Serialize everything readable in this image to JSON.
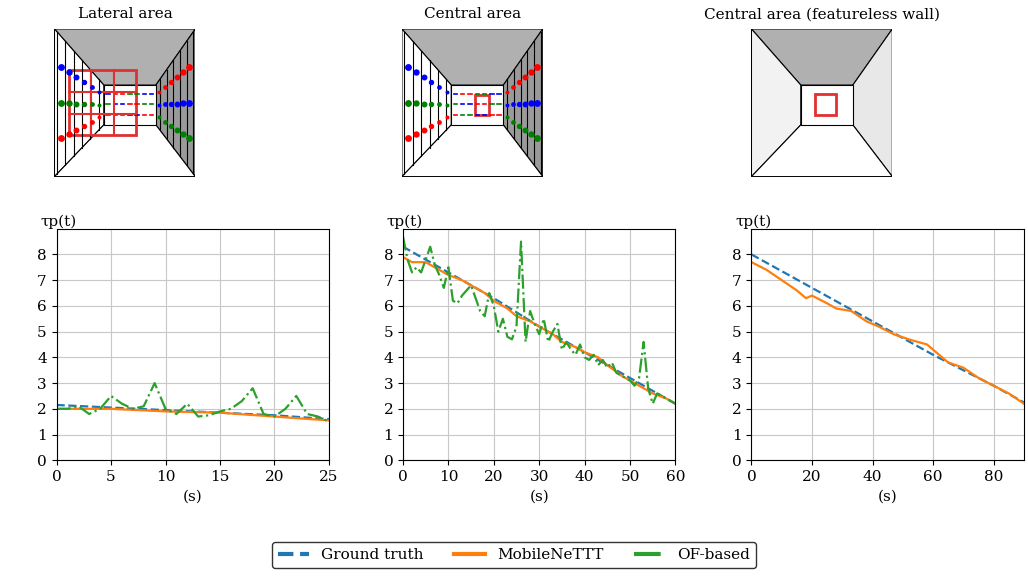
{
  "legend": "lower center",
  "chart_data": [
    {
      "type": "line",
      "title": "Lateral area",
      "x_label": "(s)",
      "y_label": "τp(t)",
      "xlim": [
        0,
        25
      ],
      "xticks": [
        0,
        5,
        10,
        15,
        20,
        25
      ],
      "ylim": [
        0,
        9
      ],
      "yticks": [
        0,
        1,
        2,
        3,
        4,
        5,
        6,
        7,
        8
      ],
      "grid": true,
      "series": [
        {
          "name": "Ground truth",
          "color": "#1f77b4",
          "line_style": "dashed",
          "x": [
            0,
            5,
            10,
            15,
            20,
            25
          ],
          "values": [
            2.15,
            2.05,
            1.95,
            1.85,
            1.75,
            1.6
          ]
        },
        {
          "name": "MobileNeTTT",
          "color": "#ff7f0e",
          "line_style": "solid",
          "x": [
            0,
            5,
            10,
            15,
            20,
            25
          ],
          "values": [
            2.0,
            2.0,
            1.9,
            1.85,
            1.7,
            1.55
          ]
        },
        {
          "name": "OF-based",
          "color": "#2ca02c",
          "line_style": "dashdot",
          "x": [
            0,
            1,
            2,
            3,
            4,
            5,
            6,
            7,
            8,
            9,
            10,
            11,
            12,
            13,
            14,
            15,
            16,
            17,
            18,
            19,
            20,
            21,
            22,
            23,
            24,
            25
          ],
          "values": [
            2.0,
            2.0,
            2.1,
            1.8,
            2.0,
            2.5,
            2.2,
            2.0,
            2.1,
            3.0,
            2.0,
            1.8,
            2.2,
            1.7,
            1.75,
            1.9,
            2.0,
            2.3,
            2.8,
            1.8,
            1.7,
            2.0,
            2.5,
            1.8,
            1.7,
            1.5
          ]
        }
      ]
    },
    {
      "type": "line",
      "title": "Central area",
      "x_label": "(s)",
      "y_label": "τp(t)",
      "xlim": [
        0,
        60
      ],
      "xticks": [
        0,
        10,
        20,
        30,
        40,
        50,
        60
      ],
      "ylim": [
        0,
        9
      ],
      "yticks": [
        0,
        1,
        2,
        3,
        4,
        5,
        6,
        7,
        8
      ],
      "grid": true,
      "series": [
        {
          "name": "Ground truth",
          "color": "#1f77b4",
          "line_style": "dashed",
          "x": [
            0,
            10,
            20,
            30,
            40,
            50,
            60
          ],
          "values": [
            8.3,
            7.3,
            6.3,
            5.2,
            4.2,
            3.2,
            2.2
          ]
        },
        {
          "name": "MobileNeTTT",
          "color": "#ff7f0e",
          "line_style": "solid",
          "x": [
            0,
            2,
            5,
            8,
            10,
            13,
            15,
            18,
            20,
            23,
            25,
            28,
            30,
            33,
            35,
            38,
            40,
            43,
            45,
            48,
            50,
            53,
            55,
            58,
            60
          ],
          "values": [
            7.9,
            7.7,
            7.7,
            7.4,
            7.2,
            7.0,
            6.8,
            6.5,
            6.2,
            5.9,
            5.6,
            5.4,
            5.2,
            4.9,
            4.6,
            4.4,
            4.2,
            4.0,
            3.7,
            3.3,
            3.1,
            2.8,
            2.6,
            2.4,
            2.2
          ]
        },
        {
          "name": "OF-based",
          "color": "#2ca02c",
          "line_style": "dashdot",
          "x": [
            0,
            1,
            2,
            3,
            4,
            5,
            6,
            7,
            8,
            9,
            10,
            11,
            12,
            13,
            14,
            15,
            16,
            17,
            18,
            19,
            20,
            21,
            22,
            23,
            24,
            25,
            26,
            27,
            28,
            29,
            30,
            31,
            32,
            33,
            34,
            35,
            36,
            37,
            38,
            39,
            40,
            41,
            42,
            43,
            44,
            45,
            46,
            47,
            48,
            49,
            50,
            51,
            52,
            53,
            54,
            55,
            56,
            57,
            58,
            59,
            60
          ],
          "values": [
            8.7,
            7.8,
            7.3,
            7.5,
            7.3,
            7.8,
            8.3,
            7.6,
            7.2,
            6.7,
            7.5,
            6.2,
            6.1,
            6.4,
            6.6,
            6.8,
            6.3,
            5.8,
            5.6,
            6.5,
            6.0,
            5.0,
            5.5,
            4.8,
            4.7,
            5.2,
            8.5,
            4.6,
            5.8,
            5.3,
            4.9,
            5.5,
            4.6,
            5.0,
            5.3,
            4.3,
            4.6,
            4.3,
            4.1,
            4.5,
            4.0,
            3.9,
            4.1,
            3.7,
            3.9,
            3.6,
            3.8,
            3.4,
            3.3,
            3.2,
            3.1,
            2.9,
            3.2,
            4.6,
            2.8,
            2.2,
            2.6,
            2.5,
            2.4,
            2.3,
            2.2
          ]
        }
      ]
    },
    {
      "type": "line",
      "title": "Central area (featureless wall)",
      "x_label": "(s)",
      "y_label": "τp(t)",
      "xlim": [
        0,
        90
      ],
      "xticks": [
        0,
        20,
        40,
        60,
        80
      ],
      "ylim": [
        0,
        9
      ],
      "yticks": [
        0,
        1,
        2,
        3,
        4,
        5,
        6,
        7,
        8
      ],
      "grid": true,
      "series": [
        {
          "name": "Ground truth",
          "color": "#1f77b4",
          "line_style": "dashed",
          "x": [
            0,
            20,
            40,
            60,
            80,
            90
          ],
          "values": [
            8.0,
            6.7,
            5.4,
            4.1,
            2.9,
            2.25
          ]
        },
        {
          "name": "MobileNeTTT",
          "color": "#ff7f0e",
          "line_style": "solid",
          "x": [
            0,
            5,
            10,
            15,
            18,
            20,
            25,
            28,
            33,
            38,
            42,
            47,
            52,
            55,
            58,
            62,
            65,
            70,
            75,
            80,
            85,
            90
          ],
          "values": [
            7.7,
            7.4,
            7.0,
            6.6,
            6.3,
            6.4,
            6.1,
            5.9,
            5.8,
            5.4,
            5.2,
            4.9,
            4.7,
            4.6,
            4.5,
            4.1,
            3.8,
            3.6,
            3.2,
            2.9,
            2.6,
            2.2
          ]
        }
      ]
    }
  ]
}
